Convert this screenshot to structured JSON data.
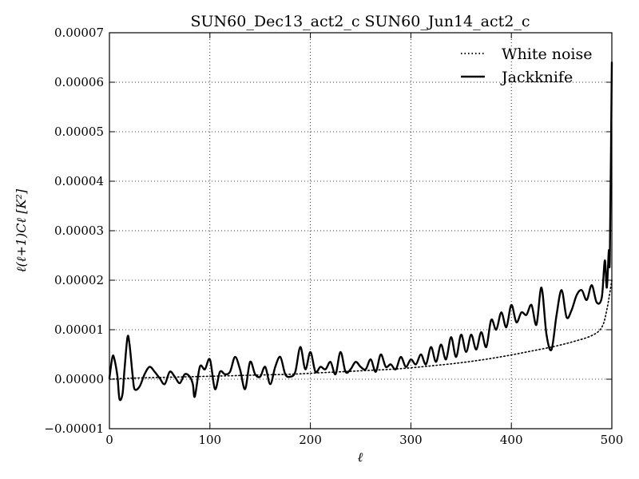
{
  "chart_data": {
    "type": "line",
    "title": "SUN60_Dec13_act2_c SUN60_Jun14_act2_c",
    "xlabel": "ℓ",
    "ylabel": "ℓ(ℓ+1)Cℓ [K²]",
    "xlim": [
      0,
      500
    ],
    "ylim": [
      -1e-05,
      7e-05
    ],
    "xticks": [
      0,
      100,
      200,
      300,
      400,
      500
    ],
    "xtick_labels": [
      "0",
      "100",
      "200",
      "300",
      "400",
      "500"
    ],
    "yticks": [
      -1e-05,
      0,
      1e-05,
      2e-05,
      3e-05,
      4e-05,
      5e-05,
      6e-05,
      7e-05
    ],
    "ytick_labels": [
      "−0.00001",
      "0.00000",
      "0.00001",
      "0.00002",
      "0.00003",
      "0.00004",
      "0.00005",
      "0.00006",
      "0.00007"
    ],
    "grid": true,
    "legend_position": "top-right",
    "series": [
      {
        "name": "White noise",
        "style": "dotted",
        "color": "#000000",
        "x": [
          0,
          20,
          40,
          60,
          80,
          100,
          120,
          140,
          160,
          180,
          200,
          220,
          240,
          260,
          280,
          300,
          320,
          340,
          360,
          380,
          400,
          420,
          440,
          460,
          480,
          490,
          495,
          500
        ],
        "values": [
          0.0,
          2e-07,
          3e-07,
          4e-07,
          5e-07,
          6e-07,
          7e-07,
          8e-07,
          9e-07,
          1e-06,
          1.2e-06,
          1.4e-06,
          1.6e-06,
          1.8e-06,
          2e-06,
          2.3e-06,
          2.7e-06,
          3.1e-06,
          3.6e-06,
          4.2e-06,
          4.9e-06,
          5.7e-06,
          6.5e-06,
          7.5e-06,
          8.8e-06,
          1.05e-05,
          1.4e-05,
          2e-05
        ]
      },
      {
        "name": "Jackknife",
        "style": "solid",
        "color": "#000000",
        "x": [
          0,
          3,
          5,
          8,
          10,
          13,
          15,
          18,
          20,
          23,
          25,
          30,
          35,
          40,
          45,
          50,
          55,
          60,
          65,
          70,
          75,
          80,
          83,
          85,
          90,
          95,
          100,
          105,
          110,
          115,
          120,
          125,
          130,
          135,
          140,
          145,
          150,
          155,
          160,
          165,
          170,
          175,
          180,
          185,
          190,
          195,
          200,
          205,
          210,
          215,
          220,
          225,
          230,
          235,
          240,
          245,
          250,
          255,
          260,
          265,
          270,
          275,
          280,
          285,
          290,
          295,
          300,
          305,
          310,
          315,
          320,
          325,
          330,
          335,
          340,
          345,
          350,
          355,
          360,
          365,
          370,
          375,
          380,
          385,
          390,
          395,
          400,
          405,
          410,
          415,
          420,
          425,
          430,
          435,
          440,
          445,
          450,
          455,
          460,
          465,
          470,
          475,
          480,
          485,
          490,
          493,
          495,
          497,
          498,
          500
        ],
        "values": [
          2e-07,
          4.5e-06,
          4e-06,
          5e-07,
          -4e-06,
          -3e-06,
          2e-06,
          8.5e-06,
          7e-06,
          1e-06,
          -2e-06,
          -1.5e-06,
          1e-06,
          2.5e-06,
          1.5e-06,
          2e-07,
          -1e-06,
          1.5e-06,
          5e-07,
          -8e-07,
          1e-06,
          5e-07,
          -1e-06,
          -3.5e-06,
          2.5e-06,
          2e-06,
          4e-06,
          -2e-06,
          1.5e-06,
          1e-06,
          1.5e-06,
          4.5e-06,
          2e-06,
          -2e-06,
          3.5e-06,
          1e-06,
          5e-07,
          2.5e-06,
          -1e-06,
          2.5e-06,
          4.5e-06,
          1e-06,
          5e-07,
          1.5e-06,
          6.5e-06,
          2e-06,
          5.5e-06,
          1.5e-06,
          2.5e-06,
          2e-06,
          3.5e-06,
          1e-06,
          5.5e-06,
          1.5e-06,
          2e-06,
          3.5e-06,
          2.5e-06,
          2e-06,
          4e-06,
          1.5e-06,
          5e-06,
          2.5e-06,
          3e-06,
          2e-06,
          4.5e-06,
          2.5e-06,
          4e-06,
          3e-06,
          5e-06,
          3e-06,
          6.5e-06,
          3.5e-06,
          7e-06,
          4e-06,
          8.5e-06,
          4.5e-06,
          9e-06,
          5.5e-06,
          9e-06,
          6e-06,
          9.5e-06,
          6.5e-06,
          1.2e-05,
          1e-05,
          1.35e-05,
          1.05e-05,
          1.5e-05,
          1.15e-05,
          1.35e-05,
          1.3e-05,
          1.5e-05,
          1.1e-05,
          1.85e-05,
          9e-06,
          6e-06,
          1.3e-05,
          1.8e-05,
          1.25e-05,
          1.4e-05,
          1.7e-05,
          1.8e-05,
          1.6e-05,
          1.9e-05,
          1.55e-05,
          1.65e-05,
          2.4e-05,
          1.85e-05,
          2.6e-05,
          2.5e-05,
          6.4e-05
        ]
      }
    ]
  },
  "legend": {
    "white_noise_label": "White noise",
    "jackknife_label": "Jackknife"
  }
}
